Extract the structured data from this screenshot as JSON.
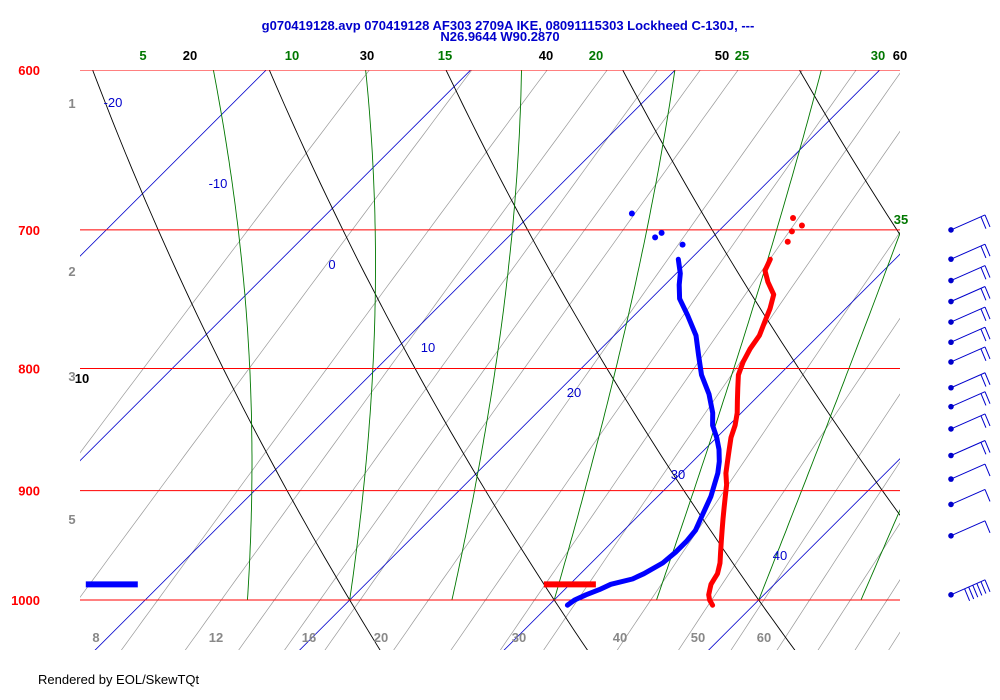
{
  "title_line1": "g070419128.avp 070419128 AF303 2709A IKE, 08091115303 Lockheed C-130J, ---",
  "title_line2": "N26.9644 W90.2870",
  "footer": "Rendered by EOL/SkewTQt",
  "colors": {
    "temperature": "#ff0000",
    "dewpoint": "#0000ff",
    "isobar": "#ff0000",
    "isotherm": "#0000cc",
    "dry_adiabat": "#000000",
    "moist_adiabat": "#007700",
    "mixing_ratio": "#999999",
    "wind_barb": "#0000cc"
  },
  "chart_data": {
    "type": "skew-t",
    "title": "g070419128.avp 070419128 AF303 2709A IKE, 08091115303 Lockheed C-130J, --- N26.9644 W90.2870",
    "y_scale": "log-pressure",
    "ylim_hpa": [
      1000,
      600
    ],
    "pressure_levels": [
      600,
      700,
      800,
      900,
      1000
    ],
    "isotherm_labels": [
      -20,
      -10,
      0,
      10,
      20,
      30,
      40
    ],
    "dry_adiabat_labels": [
      10,
      20,
      30,
      40,
      50,
      60
    ],
    "moist_adiabat_labels": [
      5,
      10,
      15,
      20,
      25,
      30,
      35
    ],
    "mixing_ratio_labels": [
      8,
      12,
      16,
      20,
      30,
      40,
      50,
      60
    ],
    "altitude_labels_km": [
      1,
      2,
      3,
      5
    ],
    "series": [
      {
        "name": "temperature",
        "points": [
          [
            1005,
            28.0
          ],
          [
            1000,
            27.6
          ],
          [
            995,
            27.3
          ],
          [
            990,
            27.1
          ],
          [
            985,
            26.9
          ],
          [
            980,
            26.8
          ],
          [
            975,
            26.7
          ],
          [
            965,
            26.3
          ],
          [
            955,
            25.8
          ],
          [
            945,
            25.3
          ],
          [
            935,
            24.8
          ],
          [
            925,
            24.3
          ],
          [
            915,
            23.8
          ],
          [
            905,
            23.3
          ],
          [
            895,
            22.8
          ],
          [
            885,
            22.2
          ],
          [
            875,
            21.7
          ],
          [
            865,
            21.2
          ],
          [
            855,
            20.7
          ],
          [
            845,
            20.3
          ],
          [
            835,
            19.8
          ],
          [
            825,
            19.2
          ],
          [
            815,
            18.6
          ],
          [
            805,
            18.0
          ],
          [
            795,
            17.6
          ],
          [
            785,
            17.3
          ],
          [
            775,
            17.1
          ],
          [
            765,
            16.7
          ],
          [
            755,
            16.3
          ],
          [
            745,
            15.8
          ],
          [
            736,
            14.9
          ],
          [
            728,
            14.2
          ],
          [
            720,
            13.9
          ]
        ],
        "sparse_points": [
          [
            985,
            20.0
          ],
          [
            708,
            13.9
          ],
          [
            701,
            13.6
          ],
          [
            697,
            13.8
          ],
          [
            692,
            13.0
          ]
        ]
      },
      {
        "name": "dewpoint",
        "points": [
          [
            1005,
            20.9
          ],
          [
            1000,
            21.0
          ],
          [
            995,
            21.3
          ],
          [
            990,
            21.7
          ],
          [
            985,
            22.0
          ],
          [
            980,
            22.8
          ],
          [
            975,
            23.1
          ],
          [
            965,
            23.5
          ],
          [
            955,
            23.6
          ],
          [
            945,
            23.6
          ],
          [
            935,
            23.5
          ],
          [
            925,
            23.2
          ],
          [
            915,
            22.9
          ],
          [
            905,
            22.6
          ],
          [
            895,
            22.2
          ],
          [
            885,
            21.8
          ],
          [
            875,
            21.3
          ],
          [
            865,
            20.7
          ],
          [
            855,
            20.0
          ],
          [
            845,
            19.2
          ],
          [
            835,
            18.6
          ],
          [
            820,
            17.5
          ],
          [
            805,
            16.2
          ],
          [
            790,
            15.1
          ],
          [
            775,
            14.0
          ],
          [
            760,
            12.6
          ],
          [
            748,
            11.4
          ],
          [
            738,
            10.7
          ],
          [
            730,
            10.2
          ],
          [
            720,
            9.4
          ]
        ],
        "sparse_points": [
          [
            985,
            -2.4
          ],
          [
            710,
            8.9
          ],
          [
            705,
            7.2
          ],
          [
            702,
            7.3
          ],
          [
            689,
            4.9
          ]
        ]
      }
    ],
    "wind_barbs": [
      {
        "p": 700,
        "speed_kt": 15
      },
      {
        "p": 720,
        "speed_kt": 15
      },
      {
        "p": 735,
        "speed_kt": 15
      },
      {
        "p": 750,
        "speed_kt": 15
      },
      {
        "p": 765,
        "speed_kt": 15
      },
      {
        "p": 780,
        "speed_kt": 15
      },
      {
        "p": 795,
        "speed_kt": 15
      },
      {
        "p": 815,
        "speed_kt": 15
      },
      {
        "p": 830,
        "speed_kt": 15
      },
      {
        "p": 848,
        "speed_kt": 15
      },
      {
        "p": 870,
        "speed_kt": 15
      },
      {
        "p": 890,
        "speed_kt": 10
      },
      {
        "p": 912,
        "speed_kt": 10
      },
      {
        "p": 940,
        "speed_kt": 10
      },
      {
        "p": 995,
        "speed_kt": 55
      }
    ]
  }
}
